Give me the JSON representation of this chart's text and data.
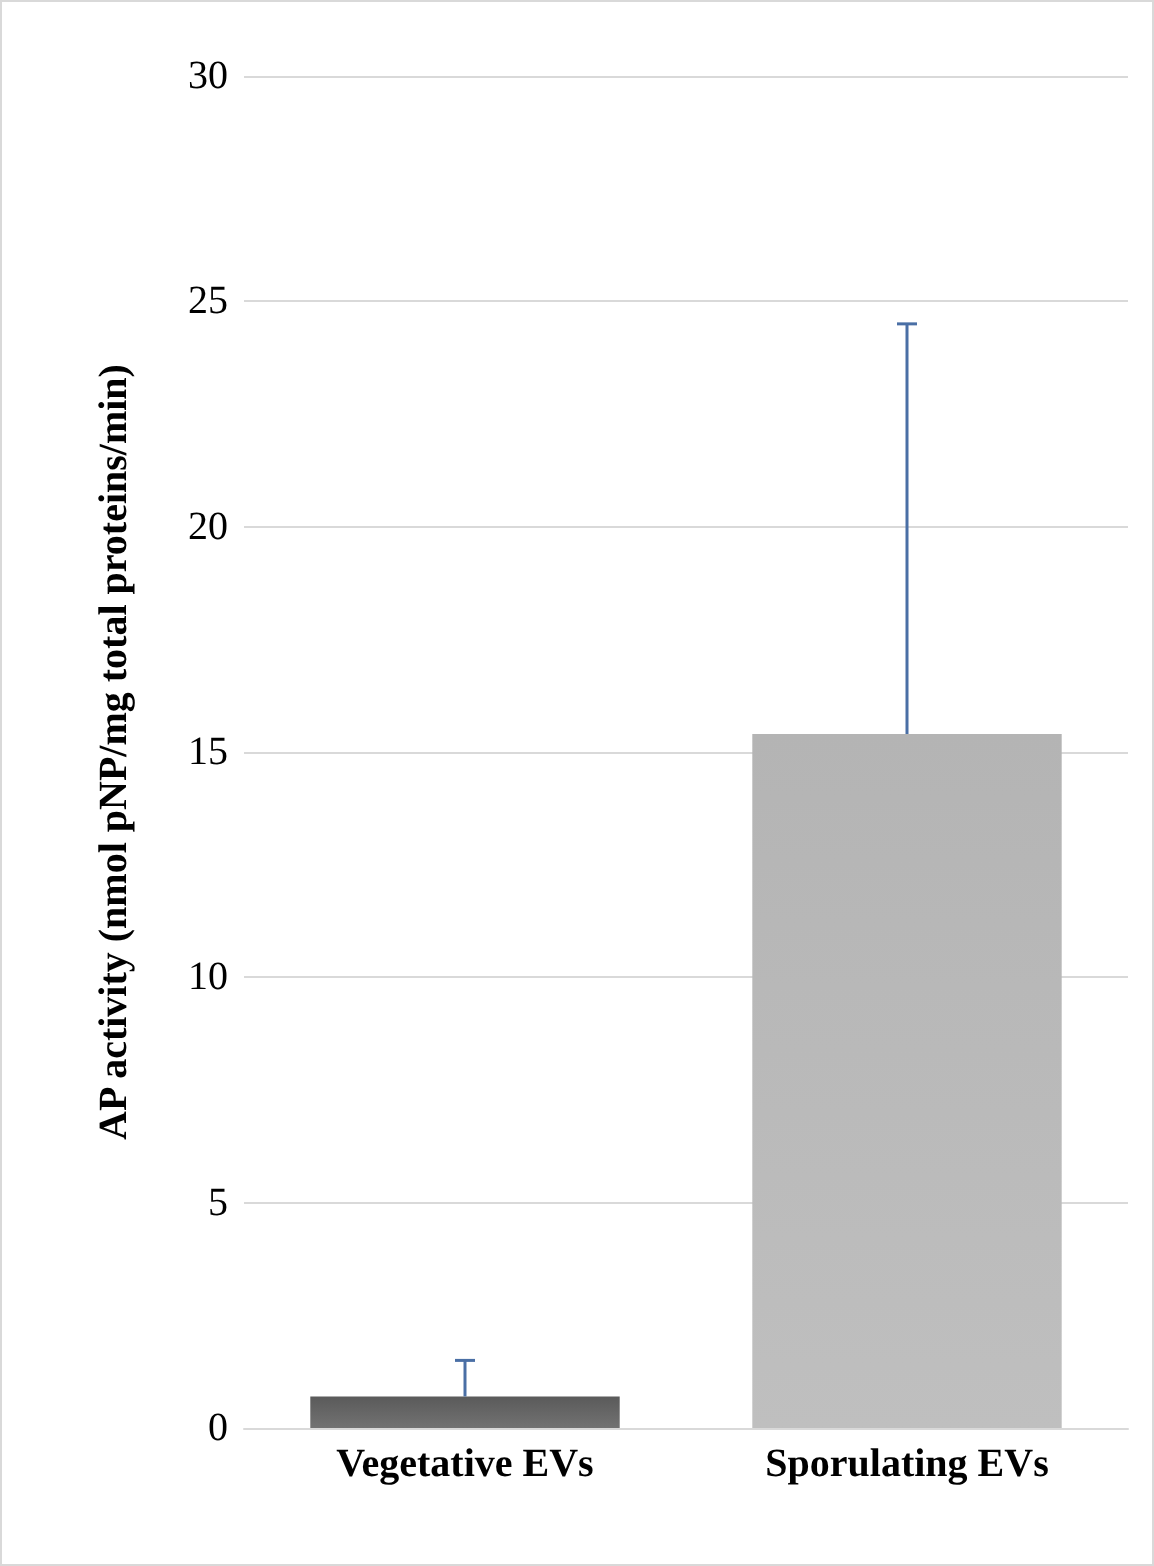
{
  "chart_data": {
    "type": "bar",
    "ylabel": "AP activity (nmol pNP/mg total proteins/min)",
    "categories": [
      "Vegetative EVs",
      "Sporulating EVs"
    ],
    "values": [
      0.7,
      15.4
    ],
    "colors": [
      "#5a5a5a",
      "#b4b4b4"
    ],
    "errors": [
      [
        0.7,
        1.5
      ],
      [
        15.4,
        24.5
      ]
    ],
    "ylim": [
      0,
      30
    ],
    "yticks": [
      0,
      5,
      10,
      15,
      20,
      25,
      30
    ],
    "grid": "y"
  }
}
